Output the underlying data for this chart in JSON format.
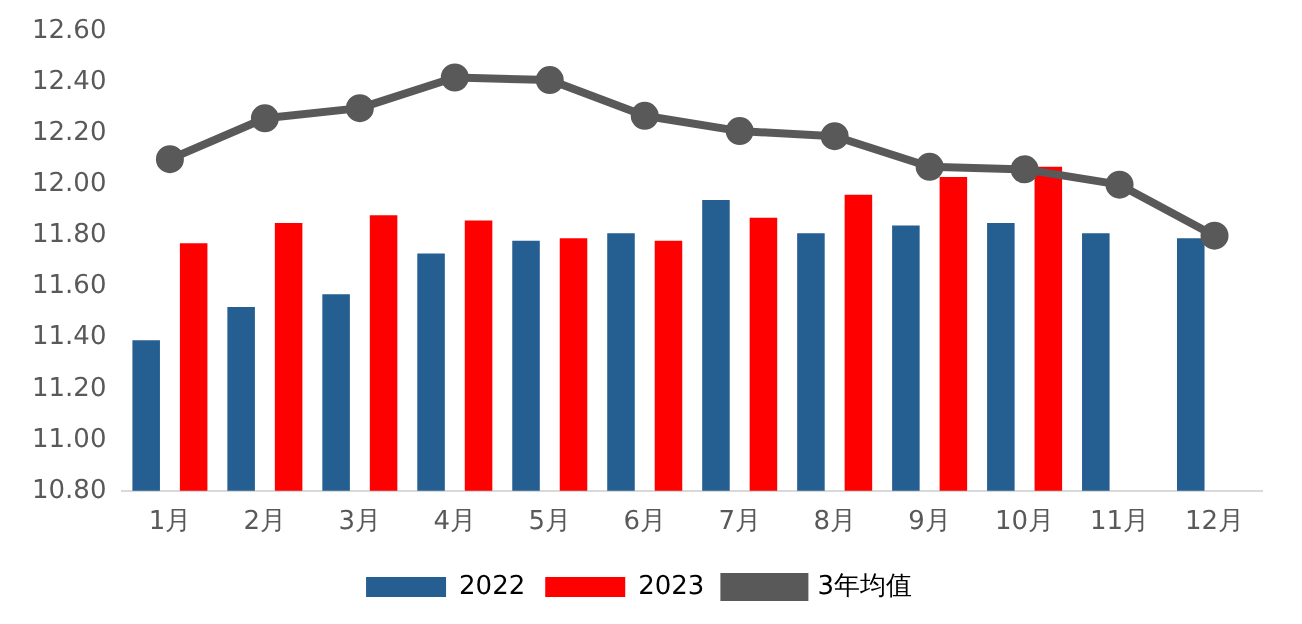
{
  "chart_data": {
    "type": "bar",
    "categories": [
      "1月",
      "2月",
      "3月",
      "4月",
      "5月",
      "6月",
      "7月",
      "8月",
      "9月",
      "10月",
      "11月",
      "12月"
    ],
    "series": [
      {
        "name": "2022",
        "color": "#255e91",
        "values": [
          11.39,
          11.52,
          11.57,
          11.73,
          11.78,
          11.81,
          11.94,
          11.81,
          11.84,
          11.85,
          11.81,
          11.79
        ]
      },
      {
        "name": "2023",
        "color": "#ff0000",
        "values": [
          11.77,
          11.85,
          11.88,
          11.86,
          11.79,
          11.78,
          11.87,
          11.96,
          12.03,
          12.07,
          null,
          null
        ]
      },
      {
        "name": "3年均值",
        "type": "line",
        "color": "#595959",
        "values": [
          12.1,
          12.26,
          12.3,
          12.42,
          12.41,
          12.27,
          12.21,
          12.19,
          12.07,
          12.06,
          12.0,
          11.8
        ]
      }
    ],
    "ylim": [
      10.8,
      12.6
    ],
    "yticks": [
      {
        "value": 10.8,
        "label": "10.80"
      },
      {
        "value": 11.0,
        "label": "11.00"
      },
      {
        "value": 11.2,
        "label": "11.20"
      },
      {
        "value": 11.4,
        "label": "11.40"
      },
      {
        "value": 11.6,
        "label": "11.60"
      },
      {
        "value": 11.8,
        "label": "11.80"
      },
      {
        "value": 12.0,
        "label": "12.00"
      },
      {
        "value": 12.2,
        "label": "12.20"
      },
      {
        "value": 12.4,
        "label": "12.40"
      },
      {
        "value": 12.6,
        "label": "12.60"
      }
    ],
    "grid": false,
    "legend": "bottom",
    "marker": "circle"
  }
}
